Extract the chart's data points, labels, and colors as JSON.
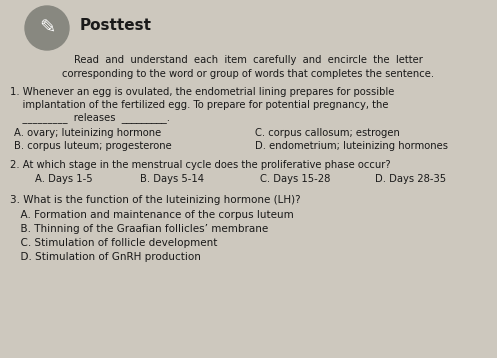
{
  "title": "Posttest",
  "bg_color": "#cdc8be",
  "text_color": "#1a1a1a",
  "instruction_line1": "Read  and  understand  each  item  carefully  and  encircle  the  letter",
  "instruction_line2": "corresponding to the word or group of words that completes the sentence.",
  "q1_line1": "1. Whenever an egg is ovulated, the endometrial lining prepares for possible",
  "q1_line2": "    implantation of the fertilized egg. To prepare for potential pregnancy, the",
  "q1_line3": "    _________  releases  _________.",
  "q1_a": "A. ovary; luteinizing hormone",
  "q1_b": "B. corpus luteum; progesterone",
  "q1_c": "C. corpus callosum; estrogen",
  "q1_d": "D. endometrium; luteinizing hormones",
  "q2_stem": "2. At which stage in the menstrual cycle does the proliferative phase occur?",
  "q2_a": "A. Days 1-5",
  "q2_b": "B. Days 5-14",
  "q2_c": "C. Days 15-28",
  "q2_d": "D. Days 28-35",
  "q3_stem": "3. What is the function of the luteinizing hormone (LH)?",
  "q3_a": "  A. Formation and maintenance of the corpus luteum",
  "q3_b": "  B. Thinning of the Graafian follicles’ membrane",
  "q3_c": "  C. Stimulation of follicle development",
  "q3_d": "  D. Stimulation of GnRH production",
  "circle_color": "#888880",
  "title_fontsize": 11,
  "body_fontsize": 7.2,
  "q3_fontsize": 7.5
}
